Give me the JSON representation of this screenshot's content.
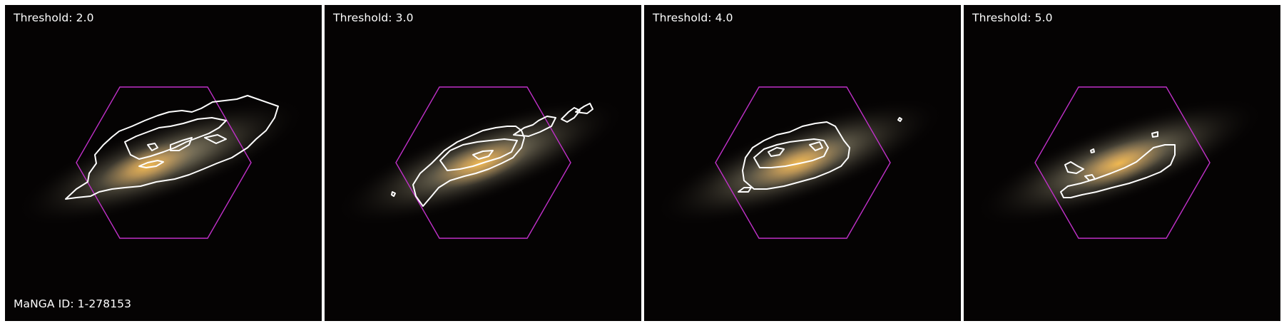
{
  "panels": [
    {
      "threshold_label": "Threshold: 2.0"
    },
    {
      "threshold_label": "Threshold: 3.0"
    },
    {
      "threshold_label": "Threshold: 4.0"
    },
    {
      "threshold_label": "Threshold: 5.0"
    }
  ],
  "galaxy_id_label": "MaNGA ID: 1-278153",
  "colors": {
    "background": "#050303",
    "galaxy_core": "#e8b45a",
    "galaxy_halo": "#bfb79a",
    "hexagon": "#c030c8",
    "contour": "#ffffff"
  },
  "icons": {
    "hexagon": "ifu-hexagon-footprint",
    "contour": "emission-contour"
  }
}
